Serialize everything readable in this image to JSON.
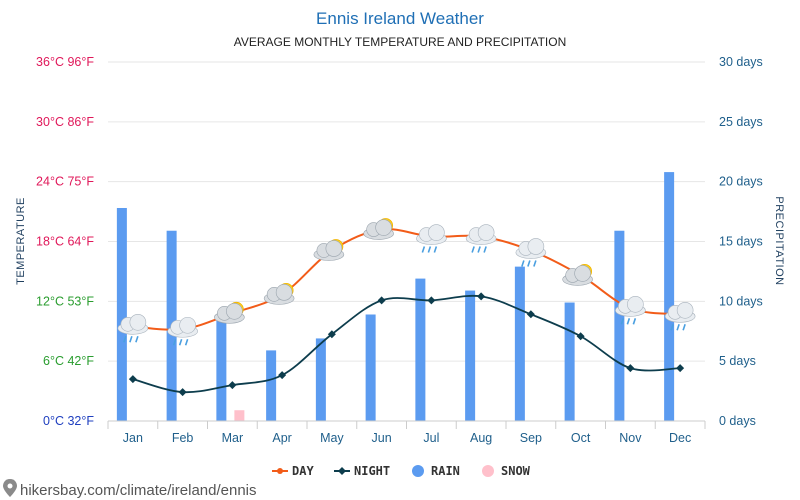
{
  "chart_data": {
    "type": "bar+line",
    "title": "Ennis Ireland Weather",
    "subtitle": "AVERAGE MONTHLY TEMPERATURE AND PRECIPITATION",
    "left_axis_label": "TEMPERATURE",
    "right_axis_label": "PRECIPITATION",
    "categories": [
      "Jan",
      "Feb",
      "Mar",
      "Apr",
      "May",
      "Jun",
      "Jul",
      "Aug",
      "Sep",
      "Oct",
      "Nov",
      "Dec"
    ],
    "temp_ylim_c": [
      0,
      36
    ],
    "temp_ticks": [
      "0°C 32°F",
      "6°C 42°F",
      "12°C 53°F",
      "18°C 64°F",
      "24°C 75°F",
      "30°C 86°F",
      "36°C 96°F"
    ],
    "precip_ylim_days": [
      0,
      30
    ],
    "precip_ticks": [
      "0 days",
      "5 days",
      "10 days",
      "15 days",
      "20 days",
      "25 days",
      "30 days"
    ],
    "series": [
      {
        "name": "DAY",
        "unit": "°C",
        "values": [
          9.5,
          9.2,
          10.8,
          12.7,
          17.1,
          19.2,
          18.5,
          18.5,
          17.1,
          14.6,
          11.3,
          10.7
        ]
      },
      {
        "name": "NIGHT",
        "unit": "°C",
        "values": [
          4.2,
          2.9,
          3.6,
          4.6,
          8.7,
          12.1,
          12.1,
          12.5,
          10.7,
          8.5,
          5.3,
          5.3
        ]
      },
      {
        "name": "RAIN",
        "unit": "days",
        "values": [
          17.8,
          15.9,
          8.9,
          5.9,
          6.9,
          8.9,
          11.9,
          10.9,
          12.9,
          9.9,
          15.9,
          20.8
        ]
      },
      {
        "name": "SNOW",
        "unit": "days",
        "values": [
          0,
          0,
          0.9,
          0,
          0,
          0,
          0,
          0,
          0,
          0,
          0,
          0
        ]
      }
    ],
    "weather_icons": [
      "rain",
      "rain",
      "partly-sunny",
      "partly-sunny",
      "partly-sunny",
      "partly-sunny",
      "rain",
      "rain",
      "rain",
      "partly-sunny",
      "rain",
      "rain"
    ],
    "legend": [
      "DAY",
      "NIGHT",
      "RAIN",
      "SNOW"
    ],
    "legend_position": "bottom-center",
    "grid": true
  },
  "colors": {
    "title": "#1f6fb5",
    "left_tick_warm": "#e0185a",
    "left_tick_cool": "#2a9d2f",
    "left_tick_zero": "#1f3fbf",
    "day_line": "#f25c19",
    "night_line": "#0d3d4d",
    "rain_bar": "#5b9bf0",
    "snow_bar": "#ffc0cb",
    "grid": "#e6e6e6"
  },
  "footer": {
    "text": "hikersbay.com/climate/ireland/ennis"
  }
}
